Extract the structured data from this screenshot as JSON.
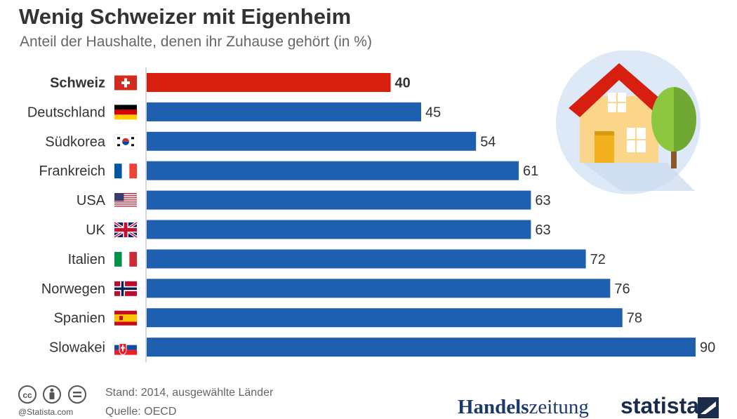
{
  "title": "Wenig Schweizer mit Eigenheim",
  "subtitle": "Anteil der Haushalte, denen ihr Zuhause gehört (in %)",
  "chart_data": {
    "type": "bar",
    "orientation": "horizontal",
    "categories": [
      "Schweiz",
      "Deutschland",
      "Südkorea",
      "Frankreich",
      "USA",
      "UK",
      "Italien",
      "Norwegen",
      "Spanien",
      "Slowakei"
    ],
    "values": [
      40,
      45,
      54,
      61,
      63,
      63,
      72,
      76,
      78,
      90
    ],
    "highlight_category": "Schweiz",
    "xlim": [
      0,
      90
    ],
    "grid": false,
    "colors": {
      "highlight": "#d71f10",
      "default": "#1f5fb0"
    },
    "flags": [
      "ch",
      "de",
      "kr",
      "fr",
      "us",
      "uk",
      "it",
      "no",
      "es",
      "sk"
    ]
  },
  "footer": {
    "note": "Stand: 2014, ausgewählte Länder",
    "source": "Quelle: OECD",
    "credit": "@Statista.com",
    "cc_icons": [
      "cc-icon",
      "by-icon",
      "nd-icon"
    ]
  },
  "logos": {
    "handelszeitung_bold": "Handels",
    "handelszeitung_light": "zeitung",
    "statista": "statista"
  },
  "illustration": "house-icon"
}
